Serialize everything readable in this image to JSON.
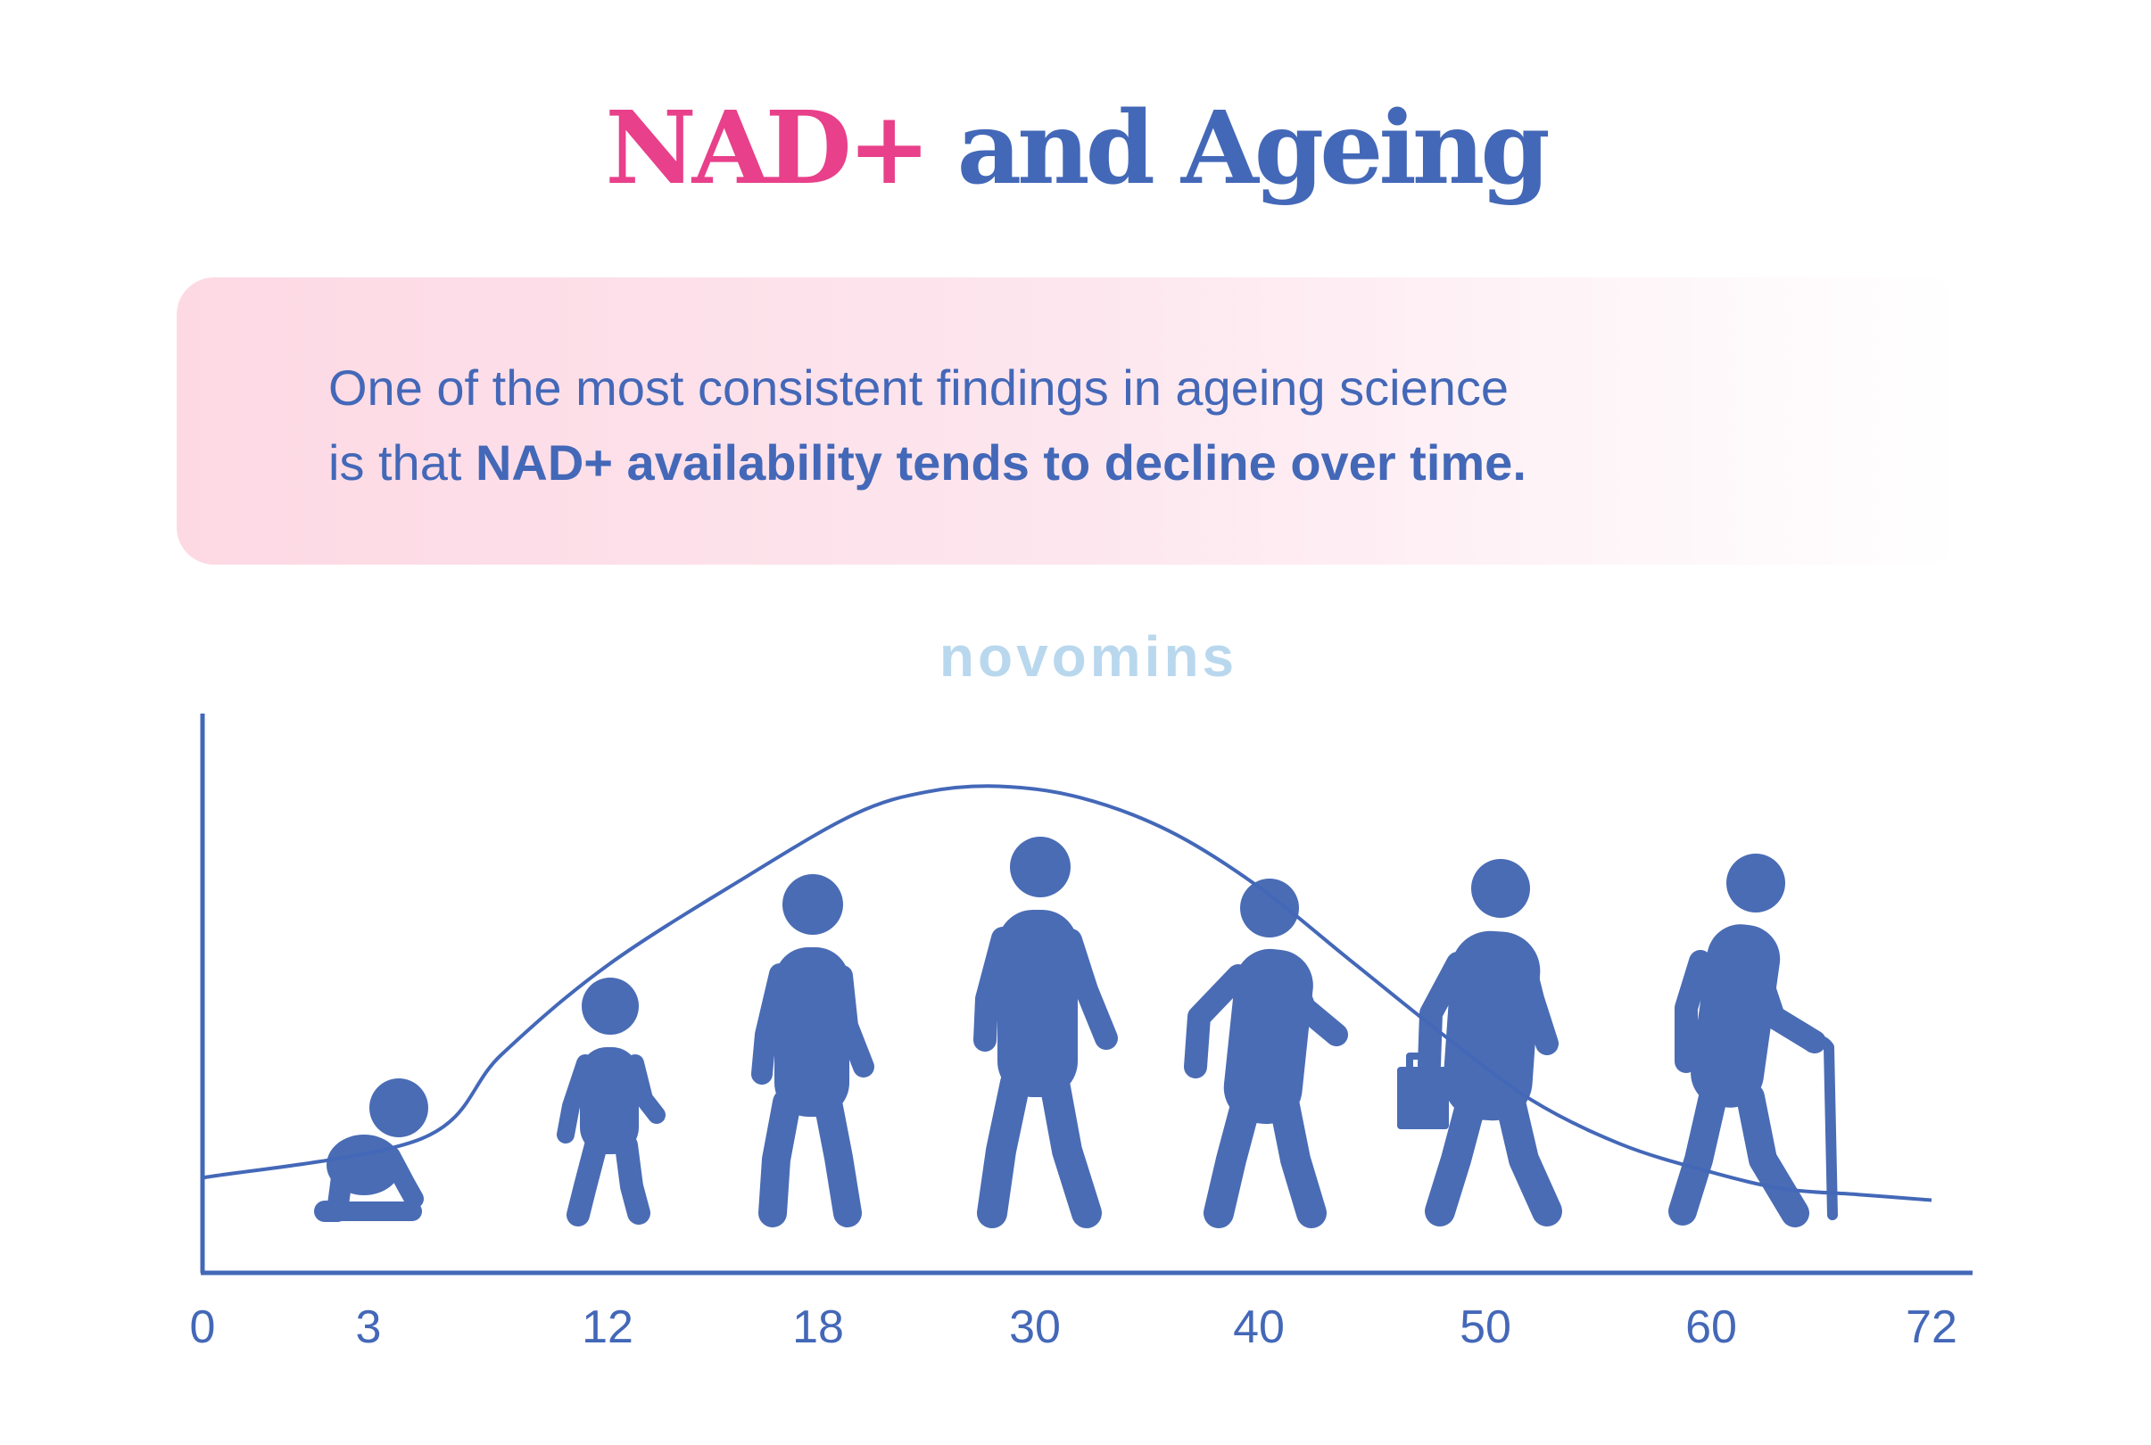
{
  "title": {
    "part1": "NAD+",
    "part2": "and Ageing"
  },
  "banner": {
    "line1": "One of the most consistent findings in ageing science",
    "line2_prefix": "is that",
    "line2_bold": "NAD+ availability tends to decline over time."
  },
  "brand": {
    "watermark": "novomins"
  },
  "colors": {
    "accent_pink": "#e8408a",
    "primary_blue": "#4468b8",
    "figure_blue": "#4a6cb5",
    "watermark_blue": "#b9d8ee",
    "banner_pink": "#fdd9e4"
  },
  "chart_data": {
    "type": "line",
    "xlabel": "",
    "ylabel": "",
    "xlim": [
      0,
      72
    ],
    "ylim": [
      0,
      1
    ],
    "grid": false,
    "x_ticks": [
      0,
      3,
      12,
      18,
      30,
      40,
      50,
      60,
      72
    ],
    "series": [
      {
        "x": [
          0,
          5,
          8,
          12,
          16,
          20,
          24,
          28,
          32,
          36,
          40,
          44,
          48,
          52,
          56,
          60,
          64,
          68,
          72
        ],
        "values": [
          0.17,
          0.24,
          0.39,
          0.55,
          0.71,
          0.82,
          0.86,
          0.87,
          0.85,
          0.79,
          0.69,
          0.56,
          0.43,
          0.31,
          0.23,
          0.18,
          0.15,
          0.14,
          0.13
        ]
      }
    ],
    "figures": [
      {
        "age": 3,
        "icon": "crawling-baby-icon"
      },
      {
        "age": 12,
        "icon": "child-icon"
      },
      {
        "age": 18,
        "icon": "teen-icon"
      },
      {
        "age": 30,
        "icon": "adult-icon"
      },
      {
        "age": 40,
        "icon": "middle-aged-icon"
      },
      {
        "age": 50,
        "icon": "businessman-briefcase-icon"
      },
      {
        "age": 60,
        "icon": "elderly-cane-icon"
      }
    ]
  }
}
